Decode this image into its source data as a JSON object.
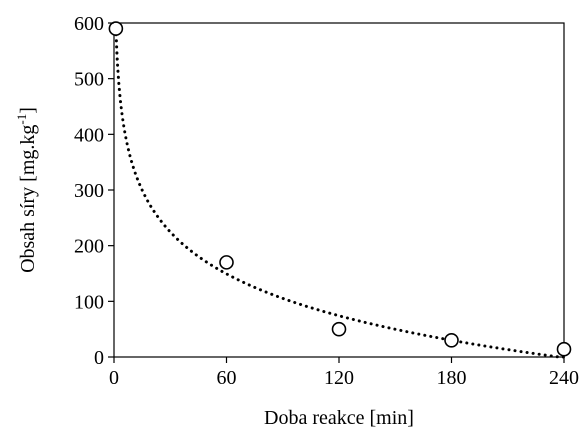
{
  "chart_data": {
    "type": "scatter",
    "xlabel": "Doba reakce [min]",
    "ylabel_main": "Obsah síry [mg.kg",
    "ylabel_sup": "-1",
    "ylabel_close": "]",
    "xlim": [
      0,
      240
    ],
    "ylim": [
      0,
      600
    ],
    "x_ticks": [
      0,
      60,
      120,
      180,
      240
    ],
    "y_ticks": [
      0,
      100,
      200,
      300,
      400,
      500,
      600
    ],
    "grid": false,
    "series": [
      {
        "marker": "open-circle",
        "x": [
          1,
          60,
          120,
          180,
          240
        ],
        "y": [
          590,
          170,
          50,
          30,
          14
        ]
      }
    ],
    "trendline": {
      "style": "dotted",
      "kind": "logarithmic",
      "fn": "y = -108.6*ln(x) + 594"
    },
    "colors": {
      "marker": "#000000",
      "trendline": "#000000",
      "axes": "#000000"
    }
  }
}
